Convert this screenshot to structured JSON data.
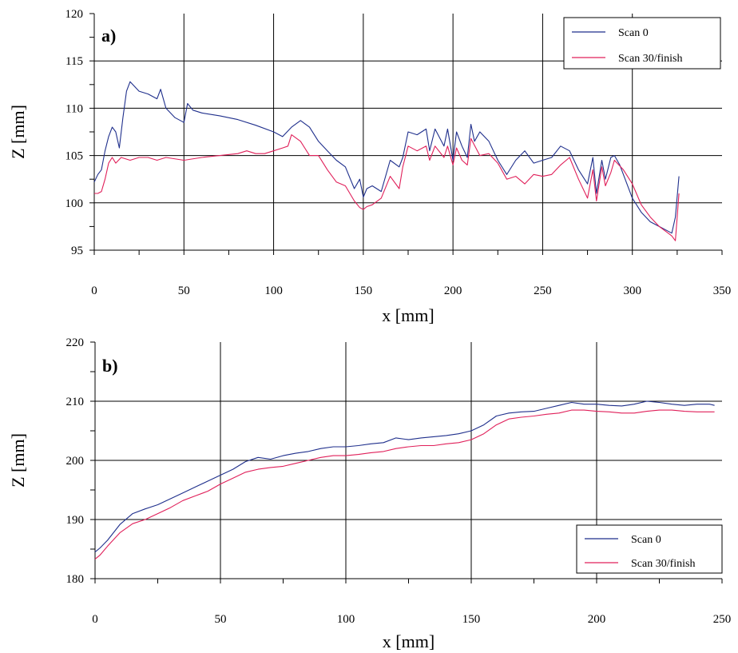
{
  "chart_data": [
    {
      "type": "line",
      "panel_label": "a)",
      "xlabel": "x [mm]",
      "ylabel": "Z [mm]",
      "xlim": [
        0,
        350
      ],
      "ylim": [
        95,
        120
      ],
      "xticks": [
        0,
        50,
        100,
        150,
        200,
        250,
        300,
        350
      ],
      "yticks": [
        95,
        100,
        105,
        110,
        115,
        120
      ],
      "grid": true,
      "legend_position": "top-right",
      "series": [
        {
          "name": "Scan 0",
          "color": "#1f2f8c",
          "x": [
            0,
            2,
            4,
            6,
            8,
            10,
            12,
            14,
            16,
            18,
            20,
            25,
            30,
            35,
            37,
            40,
            45,
            50,
            52,
            55,
            60,
            70,
            80,
            90,
            100,
            105,
            110,
            115,
            120,
            125,
            130,
            135,
            140,
            145,
            148,
            150,
            152,
            155,
            160,
            165,
            170,
            172,
            175,
            180,
            185,
            187,
            190,
            195,
            197,
            200,
            202,
            205,
            208,
            210,
            212,
            215,
            220,
            225,
            230,
            235,
            240,
            245,
            250,
            255,
            260,
            265,
            270,
            275,
            278,
            280,
            283,
            285,
            288,
            290,
            293,
            295,
            300,
            305,
            310,
            315,
            320,
            322,
            324,
            326
          ],
          "y": [
            102.2,
            103.0,
            103.5,
            105.5,
            107.0,
            108.0,
            107.5,
            105.8,
            109.0,
            111.8,
            112.8,
            111.8,
            111.5,
            111.0,
            112.0,
            110.0,
            109.0,
            108.5,
            110.5,
            109.8,
            109.5,
            109.2,
            108.8,
            108.2,
            107.5,
            107.0,
            108.0,
            108.7,
            108.0,
            106.5,
            105.5,
            104.5,
            103.8,
            101.5,
            102.5,
            100.6,
            101.5,
            101.8,
            101.2,
            104.5,
            103.8,
            104.8,
            107.5,
            107.2,
            107.8,
            105.5,
            107.8,
            106.0,
            107.8,
            104.5,
            107.5,
            106.0,
            104.8,
            108.3,
            106.5,
            107.5,
            106.5,
            104.5,
            103.0,
            104.5,
            105.5,
            104.2,
            104.5,
            104.8,
            106.0,
            105.5,
            103.5,
            102.0,
            104.8,
            101.0,
            104.5,
            102.5,
            104.8,
            105.0,
            104.0,
            103.0,
            100.5,
            99.0,
            98.0,
            97.5,
            97.0,
            96.8,
            98.5,
            102.8
          ]
        },
        {
          "name": "Scan 30/finish",
          "color": "#e0205a",
          "x": [
            0,
            2,
            4,
            6,
            8,
            10,
            12,
            15,
            20,
            25,
            30,
            35,
            40,
            50,
            60,
            70,
            80,
            85,
            90,
            95,
            100,
            105,
            108,
            110,
            115,
            120,
            125,
            130,
            135,
            140,
            145,
            148,
            150,
            152,
            155,
            160,
            165,
            170,
            172,
            175,
            180,
            185,
            187,
            190,
            195,
            197,
            200,
            202,
            205,
            208,
            210,
            215,
            220,
            225,
            230,
            235,
            240,
            245,
            250,
            255,
            260,
            265,
            270,
            275,
            278,
            280,
            283,
            285,
            288,
            290,
            295,
            300,
            305,
            310,
            315,
            320,
            322,
            324,
            326
          ],
          "y": [
            101.0,
            101.0,
            101.2,
            102.5,
            104.2,
            104.8,
            104.2,
            104.8,
            104.5,
            104.8,
            104.8,
            104.5,
            104.8,
            104.5,
            104.8,
            105.0,
            105.2,
            105.5,
            105.2,
            105.2,
            105.5,
            105.8,
            106.0,
            107.2,
            106.5,
            105.0,
            105.0,
            103.5,
            102.2,
            101.8,
            100.2,
            99.5,
            99.3,
            99.6,
            99.8,
            100.5,
            102.8,
            101.5,
            103.8,
            106.0,
            105.5,
            106.0,
            104.5,
            106.0,
            104.8,
            106.0,
            104.0,
            105.8,
            104.5,
            104.0,
            106.8,
            105.0,
            105.2,
            104.2,
            102.5,
            102.8,
            102.0,
            103.0,
            102.8,
            103.0,
            104.0,
            104.8,
            102.5,
            100.5,
            103.5,
            100.2,
            103.8,
            101.8,
            103.2,
            104.5,
            103.5,
            102.0,
            99.8,
            98.5,
            97.5,
            96.8,
            96.5,
            96.0,
            101.0
          ]
        }
      ]
    },
    {
      "type": "line",
      "panel_label": "b)",
      "xlabel": "x [mm]",
      "ylabel": "Z [mm]",
      "xlim": [
        0,
        250
      ],
      "ylim": [
        180,
        220
      ],
      "xticks": [
        0,
        50,
        100,
        150,
        200,
        250
      ],
      "yticks": [
        180,
        190,
        200,
        210,
        220
      ],
      "grid": true,
      "legend_position": "bottom-right",
      "series": [
        {
          "name": "Scan 0",
          "color": "#1f2f8c",
          "x": [
            0,
            2,
            5,
            10,
            15,
            20,
            25,
            30,
            35,
            40,
            45,
            50,
            55,
            60,
            65,
            70,
            75,
            80,
            85,
            90,
            95,
            100,
            105,
            110,
            115,
            120,
            125,
            130,
            135,
            140,
            145,
            150,
            155,
            160,
            165,
            170,
            175,
            180,
            185,
            190,
            195,
            200,
            205,
            210,
            215,
            220,
            225,
            230,
            235,
            240,
            245,
            247
          ],
          "y": [
            184.5,
            185.2,
            186.5,
            189.2,
            191.0,
            191.8,
            192.5,
            193.5,
            194.5,
            195.5,
            196.5,
            197.5,
            198.5,
            199.8,
            200.5,
            200.2,
            200.8,
            201.2,
            201.5,
            202.0,
            202.3,
            202.3,
            202.5,
            202.8,
            203.0,
            203.8,
            203.5,
            203.8,
            204.0,
            204.2,
            204.5,
            205.0,
            206.0,
            207.5,
            208.0,
            208.2,
            208.3,
            208.8,
            209.3,
            209.8,
            209.5,
            209.5,
            209.3,
            209.2,
            209.5,
            210.0,
            209.8,
            209.5,
            209.3,
            209.5,
            209.5,
            209.3
          ]
        },
        {
          "name": "Scan 30/finish",
          "color": "#e0205a",
          "x": [
            0,
            2,
            5,
            10,
            15,
            20,
            25,
            30,
            35,
            40,
            45,
            50,
            55,
            60,
            65,
            70,
            75,
            80,
            85,
            90,
            95,
            100,
            105,
            110,
            115,
            120,
            125,
            130,
            135,
            140,
            145,
            150,
            155,
            160,
            165,
            170,
            175,
            180,
            185,
            190,
            195,
            200,
            205,
            210,
            215,
            220,
            225,
            230,
            235,
            240,
            245,
            247
          ],
          "y": [
            183.3,
            184.0,
            185.5,
            187.8,
            189.3,
            190.0,
            191.0,
            192.0,
            193.2,
            194.0,
            194.8,
            196.0,
            197.0,
            198.0,
            198.5,
            198.8,
            199.0,
            199.5,
            200.0,
            200.5,
            200.8,
            200.8,
            201.0,
            201.3,
            201.5,
            202.0,
            202.3,
            202.5,
            202.5,
            202.8,
            203.0,
            203.5,
            204.5,
            206.0,
            207.0,
            207.3,
            207.5,
            207.8,
            208.0,
            208.5,
            208.5,
            208.3,
            208.2,
            208.0,
            208.0,
            208.3,
            208.5,
            208.5,
            208.3,
            208.2,
            208.2,
            208.2
          ]
        }
      ]
    }
  ]
}
